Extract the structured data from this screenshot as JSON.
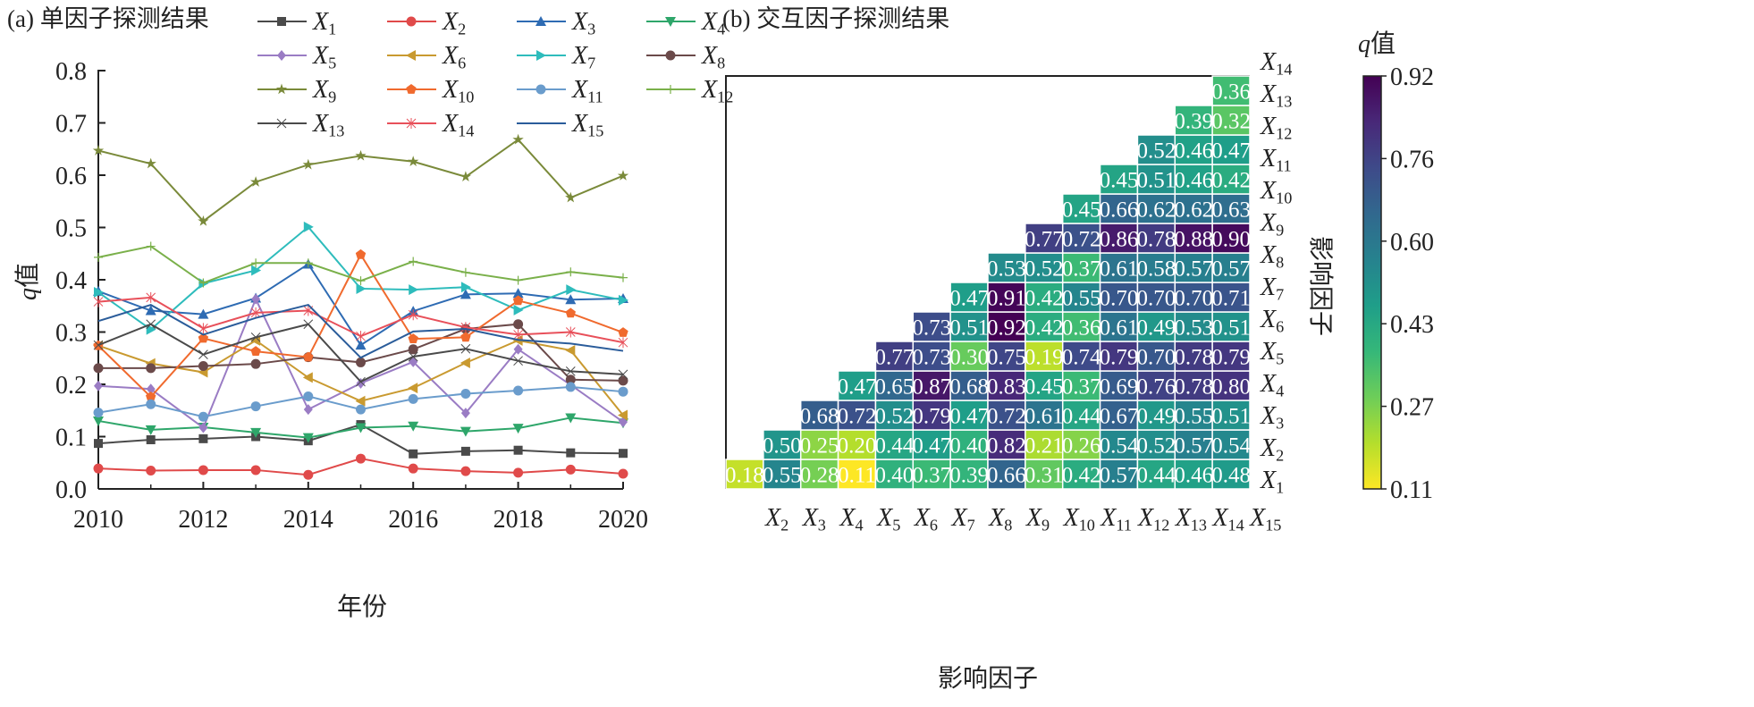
{
  "chart_data": [
    {
      "type": "line",
      "title": "(a) 单因子探测结果",
      "xlabel": "年份",
      "ylabel": "q值",
      "x": [
        2010,
        2011,
        2012,
        2013,
        2014,
        2015,
        2016,
        2017,
        2018,
        2019,
        2020
      ],
      "xticks": [
        "2010",
        "2012",
        "2014",
        "2016",
        "2018",
        "2020"
      ],
      "yticks": [
        "0.0",
        "0.1",
        "0.2",
        "0.3",
        "0.4",
        "0.5",
        "0.6",
        "0.7",
        "0.8"
      ],
      "xlim": [
        2010,
        2020
      ],
      "ylim": [
        0,
        0.8
      ],
      "grid": false,
      "legend": "top",
      "series": [
        {
          "name": "X",
          "sub": "1",
          "color": "#4a4a4a",
          "marker": "square",
          "values": [
            0.087,
            0.094,
            0.096,
            0.1,
            0.092,
            0.123,
            0.067,
            0.072,
            0.074,
            0.069,
            0.068
          ]
        },
        {
          "name": "X",
          "sub": "2",
          "color": "#e04a4a",
          "marker": "circle",
          "values": [
            0.039,
            0.035,
            0.036,
            0.036,
            0.027,
            0.058,
            0.039,
            0.034,
            0.031,
            0.037,
            0.029
          ]
        },
        {
          "name": "X",
          "sub": "3",
          "color": "#2e6bb3",
          "marker": "triangle",
          "values": [
            0.378,
            0.341,
            0.334,
            0.365,
            0.43,
            0.275,
            0.34,
            0.372,
            0.374,
            0.362,
            0.364
          ]
        },
        {
          "name": "X",
          "sub": "4",
          "color": "#2ea66a",
          "marker": "triangle-down",
          "values": [
            0.13,
            0.113,
            0.118,
            0.108,
            0.098,
            0.117,
            0.12,
            0.11,
            0.116,
            0.136,
            0.126
          ]
        },
        {
          "name": "X",
          "sub": "5",
          "color": "#9a7cc4",
          "marker": "diamond",
          "values": [
            0.197,
            0.191,
            0.117,
            0.363,
            0.152,
            0.202,
            0.243,
            0.145,
            0.267,
            0.199,
            0.128
          ]
        },
        {
          "name": "X",
          "sub": "6",
          "color": "#c99a30",
          "marker": "triangle-left",
          "values": [
            0.274,
            0.24,
            0.223,
            0.284,
            0.213,
            0.168,
            0.193,
            0.241,
            0.284,
            0.265,
            0.141
          ]
        },
        {
          "name": "X",
          "sub": "7",
          "color": "#2ebcbc",
          "marker": "triangle-right",
          "values": [
            0.376,
            0.305,
            0.393,
            0.418,
            0.501,
            0.383,
            0.381,
            0.386,
            0.342,
            0.381,
            0.361
          ]
        },
        {
          "name": "X",
          "sub": "8",
          "color": "#6b4a4a",
          "marker": "circle",
          "values": [
            0.231,
            0.231,
            0.235,
            0.239,
            0.252,
            0.242,
            0.267,
            0.306,
            0.315,
            0.209,
            0.207
          ]
        },
        {
          "name": "X",
          "sub": "9",
          "color": "#7a8a3a",
          "marker": "star",
          "values": [
            0.647,
            0.622,
            0.512,
            0.587,
            0.62,
            0.637,
            0.626,
            0.597,
            0.668,
            0.557,
            0.599
          ]
        },
        {
          "name": "X",
          "sub": "10",
          "color": "#f06a2e",
          "marker": "pentagon",
          "values": [
            0.274,
            0.176,
            0.288,
            0.263,
            0.252,
            0.448,
            0.287,
            0.29,
            0.36,
            0.336,
            0.299
          ]
        },
        {
          "name": "X",
          "sub": "11",
          "color": "#6a9ccc",
          "marker": "circle",
          "values": [
            0.146,
            0.162,
            0.138,
            0.158,
            0.177,
            0.152,
            0.172,
            0.182,
            0.188,
            0.195,
            0.186
          ]
        },
        {
          "name": "X",
          "sub": "12",
          "color": "#7ab04a",
          "marker": "plus",
          "values": [
            0.443,
            0.464,
            0.394,
            0.432,
            0.432,
            0.398,
            0.435,
            0.414,
            0.399,
            0.415,
            0.404
          ]
        },
        {
          "name": "X",
          "sub": "13",
          "color": "#4a4a4a",
          "marker": "x",
          "values": [
            0.275,
            0.315,
            0.257,
            0.29,
            0.315,
            0.205,
            0.253,
            0.268,
            0.245,
            0.225,
            0.219
          ]
        },
        {
          "name": "X",
          "sub": "14",
          "color": "#e8505a",
          "marker": "asterisk",
          "values": [
            0.358,
            0.366,
            0.307,
            0.337,
            0.341,
            0.292,
            0.333,
            0.309,
            0.295,
            0.3,
            0.28
          ]
        },
        {
          "name": "X",
          "sub": "15",
          "color": "#2a5c9a",
          "marker": "none",
          "values": [
            0.321,
            0.352,
            0.295,
            0.327,
            0.352,
            0.251,
            0.301,
            0.306,
            0.285,
            0.278,
            0.264
          ]
        }
      ]
    },
    {
      "type": "heatmap",
      "title": "(b) 交互因子探测结果",
      "xlabel": "影响因子",
      "ylabel": "影响因子",
      "colorbar_title": "q值",
      "colorbar_ticks": [
        "0.92",
        "0.76",
        "0.60",
        "0.43",
        "0.27",
        "0.11"
      ],
      "colorbar_range": [
        0.11,
        0.92
      ],
      "colormap": "viridis (reversed: high = dark purple, low = yellow)",
      "columns": [
        "2",
        "3",
        "4",
        "5",
        "6",
        "7",
        "8",
        "9",
        "10",
        "11",
        "12",
        "13",
        "14",
        "15"
      ],
      "rows": [
        "1",
        "2",
        "3",
        "4",
        "5",
        "6",
        "7",
        "8",
        "9",
        "10",
        "11",
        "12",
        "13",
        "14"
      ],
      "values": [
        [
          0.18,
          0.55,
          0.28,
          0.11,
          0.4,
          0.37,
          0.39,
          0.66,
          0.31,
          0.42,
          0.57,
          0.44,
          0.46,
          0.48
        ],
        [
          0.5,
          0.25,
          0.2,
          0.44,
          0.47,
          0.4,
          0.82,
          0.21,
          0.26,
          0.54,
          0.52,
          0.57,
          0.54
        ],
        [
          0.68,
          0.72,
          0.52,
          0.79,
          0.47,
          0.72,
          0.61,
          0.44,
          0.67,
          0.49,
          0.55,
          0.51
        ],
        [
          0.47,
          0.65,
          0.87,
          0.68,
          0.83,
          0.45,
          0.37,
          0.69,
          0.76,
          0.78,
          0.8
        ],
        [
          0.77,
          0.73,
          0.3,
          0.75,
          0.19,
          0.74,
          0.79,
          0.7,
          0.78,
          0.79
        ],
        [
          0.73,
          0.51,
          0.92,
          0.42,
          0.36,
          0.61,
          0.49,
          0.53,
          0.51
        ],
        [
          0.47,
          0.91,
          0.42,
          0.55,
          0.7,
          0.7,
          0.7,
          0.71
        ],
        [
          0.53,
          0.52,
          0.37,
          0.61,
          0.58,
          0.57,
          0.57
        ],
        [
          0.77,
          0.72,
          0.86,
          0.78,
          0.88,
          0.9
        ],
        [
          0.45,
          0.66,
          0.62,
          0.62,
          0.63
        ],
        [
          0.45,
          0.51,
          0.46,
          0.42
        ],
        [
          0.52,
          0.46,
          0.47
        ],
        [
          0.39,
          0.32
        ],
        [
          0.36
        ]
      ]
    }
  ]
}
